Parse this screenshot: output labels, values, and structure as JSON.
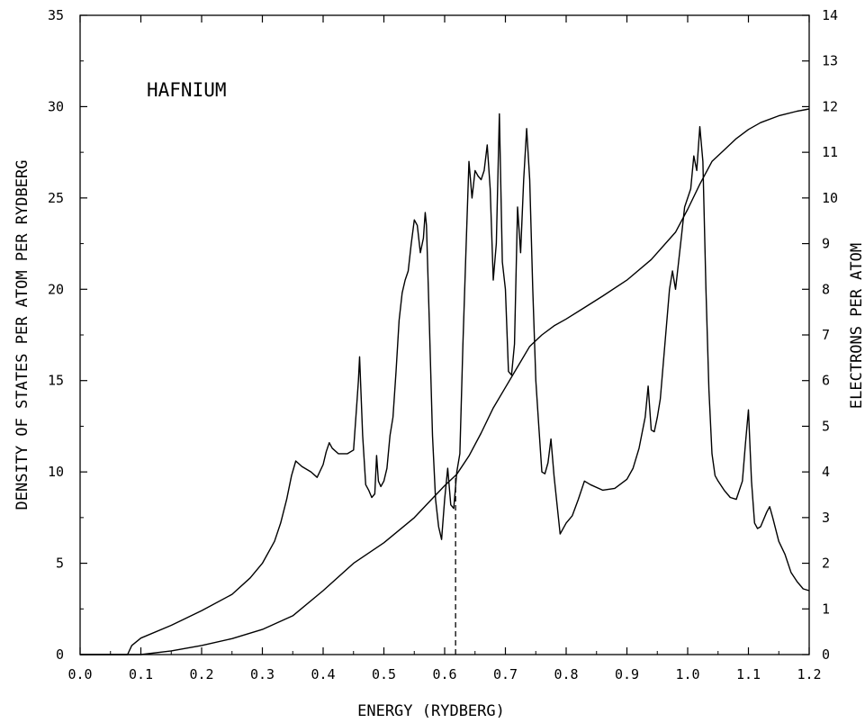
{
  "chart_data": {
    "type": "line",
    "title": "HAFNIUM",
    "xlabel": "ENERGY (RYDBERG)",
    "ylabel": "DENSITY OF STATES PER ATOM PER RYDBERG",
    "y2label": "ELECTRONS PER ATOM",
    "xlim": [
      0.0,
      1.2
    ],
    "ylim": [
      0,
      35
    ],
    "y2lim": [
      0,
      14
    ],
    "x_ticks": [
      "0.0",
      "0.1",
      "0.2",
      "0.3",
      "0.4",
      "0.5",
      "0.6",
      "0.7",
      "0.8",
      "0.9",
      "1.0",
      "1.1",
      "1.2"
    ],
    "y_ticks": [
      "0",
      "5",
      "10",
      "15",
      "20",
      "25",
      "30",
      "35"
    ],
    "y2_ticks": [
      "0",
      "1",
      "2",
      "3",
      "4",
      "5",
      "6",
      "7",
      "8",
      "9",
      "10",
      "11",
      "12",
      "13",
      "14"
    ],
    "grid": false,
    "fermi_energy": 0.618,
    "series": [
      {
        "axis": "left",
        "x": [
          0.0,
          0.078,
          0.085,
          0.1,
          0.15,
          0.2,
          0.25,
          0.28,
          0.3,
          0.32,
          0.33,
          0.34,
          0.348,
          0.355,
          0.365,
          0.38,
          0.39,
          0.4,
          0.405,
          0.41,
          0.415,
          0.425,
          0.44,
          0.45,
          0.455,
          0.458,
          0.46,
          0.465,
          0.47,
          0.475,
          0.48,
          0.485,
          0.488,
          0.491,
          0.495,
          0.5,
          0.505,
          0.51,
          0.515,
          0.52,
          0.525,
          0.53,
          0.535,
          0.54,
          0.545,
          0.55,
          0.555,
          0.56,
          0.565,
          0.568,
          0.57,
          0.575,
          0.58,
          0.585,
          0.59,
          0.595,
          0.6,
          0.605,
          0.61,
          0.615,
          0.62,
          0.625,
          0.63,
          0.635,
          0.64,
          0.645,
          0.65,
          0.655,
          0.66,
          0.665,
          0.67,
          0.675,
          0.68,
          0.685,
          0.69,
          0.695,
          0.7,
          0.705,
          0.71,
          0.715,
          0.72,
          0.725,
          0.73,
          0.735,
          0.74,
          0.745,
          0.75,
          0.755,
          0.76,
          0.765,
          0.77,
          0.775,
          0.78,
          0.785,
          0.79,
          0.8,
          0.81,
          0.82,
          0.83,
          0.84,
          0.86,
          0.88,
          0.9,
          0.91,
          0.92,
          0.93,
          0.935,
          0.94,
          0.945,
          0.95,
          0.955,
          0.96,
          0.965,
          0.97,
          0.975,
          0.98,
          0.985,
          0.99,
          0.995,
          1.0,
          1.005,
          1.01,
          1.015,
          1.02,
          1.025,
          1.03,
          1.035,
          1.04,
          1.045,
          1.05,
          1.06,
          1.07,
          1.08,
          1.09,
          1.095,
          1.1,
          1.105,
          1.11,
          1.115,
          1.12,
          1.13,
          1.135,
          1.14,
          1.15,
          1.16,
          1.17,
          1.18,
          1.19,
          1.2
        ],
        "y": [
          0,
          0,
          0.5,
          0.9,
          1.6,
          2.4,
          3.3,
          4.2,
          5.0,
          6.2,
          7.2,
          8.5,
          9.8,
          10.6,
          10.3,
          10.0,
          9.7,
          10.4,
          11.1,
          11.6,
          11.3,
          11.0,
          11.0,
          11.2,
          13.5,
          15.0,
          16.3,
          12.0,
          9.3,
          9.0,
          8.6,
          8.8,
          10.9,
          9.5,
          9.2,
          9.5,
          10.2,
          12.0,
          13.0,
          15.5,
          18.3,
          19.8,
          20.5,
          21.0,
          22.5,
          23.8,
          23.5,
          22.0,
          22.8,
          24.2,
          23.5,
          18.0,
          12.0,
          8.5,
          7.0,
          6.3,
          8.5,
          10.2,
          8.2,
          8.0,
          10.0,
          11.0,
          17.0,
          22.0,
          27.0,
          25.0,
          26.5,
          26.2,
          26.0,
          26.5,
          27.9,
          25.5,
          20.5,
          22.5,
          29.6,
          21.5,
          20.0,
          15.5,
          15.3,
          17.0,
          24.5,
          22.0,
          26.0,
          28.8,
          26.0,
          20.0,
          15.0,
          12.5,
          10.0,
          9.9,
          10.5,
          11.8,
          9.8,
          8.2,
          6.6,
          7.2,
          7.6,
          8.5,
          9.5,
          9.3,
          9.0,
          9.1,
          9.6,
          10.2,
          11.3,
          13.0,
          14.7,
          12.3,
          12.2,
          13.0,
          14.0,
          16.0,
          18.0,
          20.0,
          21.0,
          20.0,
          21.5,
          23.0,
          24.5,
          25.0,
          25.5,
          27.3,
          26.5,
          28.9,
          27.0,
          20.0,
          14.5,
          11.0,
          9.8,
          9.5,
          9.0,
          8.6,
          8.5,
          9.5,
          11.5,
          13.4,
          9.5,
          7.2,
          6.9,
          7.0,
          7.8,
          8.1,
          7.5,
          6.2,
          5.5,
          4.5,
          4.0,
          3.6,
          3.5
        ]
      },
      {
        "axis": "right",
        "x": [
          0.0,
          0.1,
          0.15,
          0.2,
          0.25,
          0.3,
          0.35,
          0.4,
          0.45,
          0.5,
          0.55,
          0.575,
          0.6,
          0.62,
          0.64,
          0.66,
          0.68,
          0.7,
          0.72,
          0.74,
          0.76,
          0.78,
          0.8,
          0.83,
          0.86,
          0.9,
          0.94,
          0.98,
          1.0,
          1.02,
          1.04,
          1.06,
          1.08,
          1.1,
          1.12,
          1.15,
          1.18,
          1.2
        ],
        "y": [
          0,
          0,
          0.08,
          0.2,
          0.35,
          0.55,
          0.85,
          1.4,
          2.0,
          2.45,
          3.0,
          3.35,
          3.7,
          3.95,
          4.35,
          4.85,
          5.4,
          5.85,
          6.3,
          6.75,
          7.0,
          7.2,
          7.35,
          7.6,
          7.85,
          8.2,
          8.65,
          9.25,
          9.75,
          10.3,
          10.8,
          11.05,
          11.3,
          11.5,
          11.65,
          11.8,
          11.9,
          11.95
        ]
      }
    ]
  }
}
